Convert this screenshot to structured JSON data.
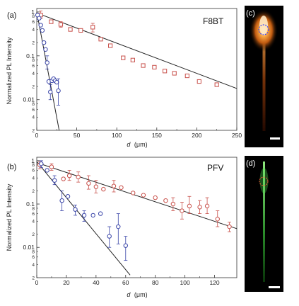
{
  "colors": {
    "red_series": "#c8504a",
    "blue_series": "#3a45a8",
    "fit_line": "#222222",
    "image_background": "#000000",
    "emission_orange": "#ff8a1e",
    "emission_green": "#4fe04f",
    "scale_bar": "#ffffff"
  },
  "ylabel_left": "Normalized PL Intensity",
  "image_panels": [
    {
      "label": "(c)",
      "emission": "orange",
      "has_scale_bar": true
    },
    {
      "label": "(d)",
      "emission": "green",
      "has_scale_bar": true
    }
  ],
  "chart_data": [
    {
      "panel_label": "(a)",
      "material": "F8BT",
      "type": "scatter",
      "xlabel_var": "d",
      "xlabel_unit": "(μm)",
      "ylabel": "Normalized PL Intensity",
      "y_scale": "log",
      "xlim": [
        0,
        250
      ],
      "ylim": [
        0.002,
        1.2
      ],
      "x_ticks": [
        0,
        50,
        100,
        150,
        200,
        250
      ],
      "y_major_ticks": [
        {
          "v": 1,
          "t": "1"
        },
        {
          "v": 0.1,
          "t": "0.1"
        },
        {
          "v": 0.01,
          "t": "0.01"
        }
      ],
      "y_minor_labels": [
        "8",
        "6",
        "4",
        "2",
        "8",
        "6",
        "4",
        "2",
        "8",
        "6",
        "4",
        "2"
      ],
      "series": [
        {
          "color": "red",
          "marker": "square",
          "points": [
            {
              "x": 5,
              "y": 0.85,
              "lo": 0.7,
              "hi": 1.05
            },
            {
              "x": 18,
              "y": 0.6
            },
            {
              "x": 30,
              "y": 0.52,
              "lo": 0.45,
              "hi": 0.6
            },
            {
              "x": 42,
              "y": 0.4
            },
            {
              "x": 55,
              "y": 0.38
            },
            {
              "x": 70,
              "y": 0.45,
              "lo": 0.35,
              "hi": 0.55
            },
            {
              "x": 80,
              "y": 0.24
            },
            {
              "x": 92,
              "y": 0.17
            },
            {
              "x": 108,
              "y": 0.09
            },
            {
              "x": 120,
              "y": 0.08
            },
            {
              "x": 133,
              "y": 0.06
            },
            {
              "x": 147,
              "y": 0.055
            },
            {
              "x": 160,
              "y": 0.045
            },
            {
              "x": 172,
              "y": 0.04
            },
            {
              "x": 188,
              "y": 0.035
            },
            {
              "x": 203,
              "y": 0.026
            },
            {
              "x": 225,
              "y": 0.022
            }
          ],
          "fit": [
            [
              0,
              0.95
            ],
            [
              250,
              0.018
            ]
          ]
        },
        {
          "color": "blue",
          "marker": "circle",
          "points": [
            {
              "x": 1,
              "y": 0.85
            },
            {
              "x": 3,
              "y": 0.72
            },
            {
              "x": 5,
              "y": 0.5
            },
            {
              "x": 7,
              "y": 0.38
            },
            {
              "x": 9,
              "y": 0.2
            },
            {
              "x": 11,
              "y": 0.14
            },
            {
              "x": 13,
              "y": 0.07,
              "lo": 0.05,
              "hi": 0.1
            },
            {
              "x": 15,
              "y": 0.026
            },
            {
              "x": 17,
              "y": 0.015,
              "lo": 0.01,
              "hi": 0.022
            },
            {
              "x": 19,
              "y": 0.027
            },
            {
              "x": 21,
              "y": 0.03
            },
            {
              "x": 23,
              "y": 0.027
            },
            {
              "x": 25,
              "y": 0.025
            },
            {
              "x": 27,
              "y": 0.016,
              "lo": 0.0075,
              "hi": 0.03
            }
          ],
          "fit": [
            [
              0,
              1.0
            ],
            [
              28,
              0.002
            ]
          ]
        }
      ]
    },
    {
      "panel_label": "(b)",
      "material": "PFV",
      "type": "scatter",
      "xlabel_var": "d",
      "xlabel_unit": "(μm)",
      "ylabel": "Normalized PL Intensity",
      "y_scale": "log",
      "xlim": [
        0,
        135
      ],
      "ylim": [
        0.002,
        1.2
      ],
      "x_ticks": [
        0,
        20,
        40,
        60,
        80,
        100,
        120
      ],
      "y_major_ticks": [
        {
          "v": 1,
          "t": "1"
        },
        {
          "v": 0.1,
          "t": "0.1"
        },
        {
          "v": 0.01,
          "t": "0.01"
        }
      ],
      "y_minor_labels": [
        "8",
        "6",
        "4",
        "2",
        "8",
        "6",
        "4",
        "2",
        "8",
        "6",
        "4",
        "2"
      ],
      "series": [
        {
          "color": "red",
          "marker": "circle",
          "points": [
            {
              "x": 2,
              "y": 0.8,
              "lo": 0.65,
              "hi": 0.95
            },
            {
              "x": 10,
              "y": 0.72,
              "lo": 0.6,
              "hi": 0.85
            },
            {
              "x": 18,
              "y": 0.38
            },
            {
              "x": 22,
              "y": 0.45,
              "lo": 0.35,
              "hi": 0.6
            },
            {
              "x": 28,
              "y": 0.42,
              "lo": 0.32,
              "hi": 0.55
            },
            {
              "x": 35,
              "y": 0.3,
              "lo": 0.22,
              "hi": 0.45
            },
            {
              "x": 40,
              "y": 0.25,
              "lo": 0.18,
              "hi": 0.35
            },
            {
              "x": 45,
              "y": 0.22
            },
            {
              "x": 52,
              "y": 0.26,
              "lo": 0.19,
              "hi": 0.35
            },
            {
              "x": 57,
              "y": 0.24
            },
            {
              "x": 65,
              "y": 0.18
            },
            {
              "x": 72,
              "y": 0.16
            },
            {
              "x": 80,
              "y": 0.14
            },
            {
              "x": 87,
              "y": 0.12
            },
            {
              "x": 92,
              "y": 0.1,
              "lo": 0.07,
              "hi": 0.14
            },
            {
              "x": 98,
              "y": 0.07,
              "lo": 0.045,
              "hi": 0.11
            },
            {
              "x": 103,
              "y": 0.09,
              "lo": 0.06,
              "hi": 0.15
            },
            {
              "x": 110,
              "y": 0.085,
              "lo": 0.06,
              "hi": 0.12
            },
            {
              "x": 115,
              "y": 0.09,
              "lo": 0.06,
              "hi": 0.14
            },
            {
              "x": 122,
              "y": 0.045,
              "lo": 0.03,
              "hi": 0.07
            },
            {
              "x": 130,
              "y": 0.03,
              "lo": 0.023,
              "hi": 0.038
            }
          ],
          "fit": [
            [
              0,
              0.9
            ],
            [
              135,
              0.027
            ]
          ]
        },
        {
          "color": "blue",
          "marker": "circle",
          "points": [
            {
              "x": 3,
              "y": 0.85,
              "lo": 0.7,
              "hi": 1.0
            },
            {
              "x": 7,
              "y": 0.6
            },
            {
              "x": 12,
              "y": 0.35,
              "lo": 0.28,
              "hi": 0.45
            },
            {
              "x": 17,
              "y": 0.12,
              "lo": 0.07,
              "hi": 0.2
            },
            {
              "x": 21,
              "y": 0.15
            },
            {
              "x": 26,
              "y": 0.075,
              "lo": 0.055,
              "hi": 0.095
            },
            {
              "x": 32,
              "y": 0.055,
              "lo": 0.04,
              "hi": 0.07
            },
            {
              "x": 38,
              "y": 0.055
            },
            {
              "x": 43,
              "y": 0.06
            },
            {
              "x": 49,
              "y": 0.018,
              "lo": 0.01,
              "hi": 0.03
            },
            {
              "x": 55,
              "y": 0.03,
              "lo": 0.012,
              "hi": 0.06
            },
            {
              "x": 60,
              "y": 0.011,
              "lo": 0.005,
              "hi": 0.018
            }
          ],
          "fit": [
            [
              0,
              0.95
            ],
            [
              63,
              0.0023
            ]
          ]
        }
      ]
    }
  ]
}
